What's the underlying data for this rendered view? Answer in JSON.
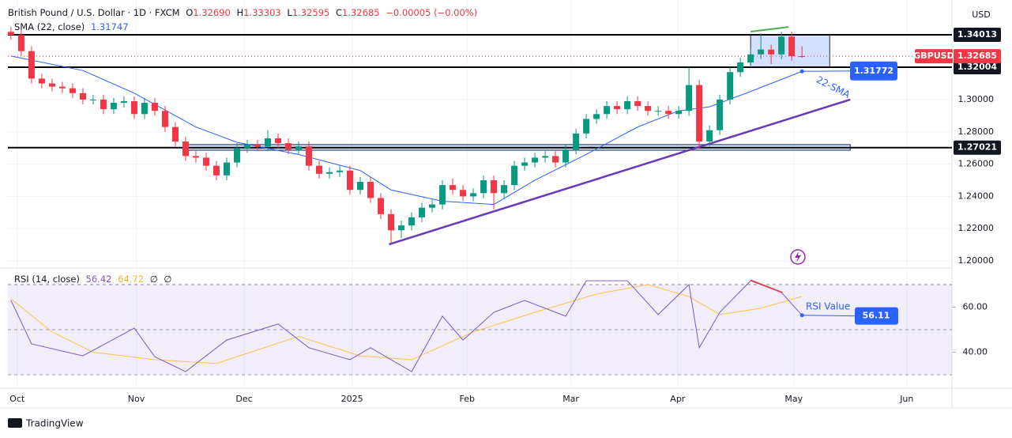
{
  "chart_data": {
    "type": "candlestick",
    "currency": "USD",
    "legend": {
      "title": "British Pound / U.S. Dollar · 1D · FXCM",
      "ohlc": [
        {
          "key": "O",
          "value": "1.32690"
        },
        {
          "key": "H",
          "value": "1.33303"
        },
        {
          "key": "L",
          "value": "1.32595"
        },
        {
          "key": "C",
          "value": "1.32685"
        }
      ],
      "change": "−0.00005 (−0.00%)"
    },
    "up_color": "#089981",
    "down_color": "#f23645",
    "open": [
      1.342,
      1.34,
      1.33,
      1.313,
      1.31,
      1.308,
      1.307,
      1.304,
      1.3,
      1.3,
      1.294,
      1.298,
      1.299,
      1.291,
      1.298,
      1.293,
      1.283,
      1.274,
      1.265,
      1.264,
      1.259,
      1.253,
      1.261,
      1.27,
      1.272,
      1.271,
      1.276,
      1.273,
      1.269,
      1.271,
      1.259,
      1.254,
      1.255,
      1.256,
      1.244,
      1.249,
      1.239,
      1.229,
      1.219,
      1.222,
      1.227,
      1.233,
      1.235,
      1.247,
      1.244,
      1.24,
      1.242,
      1.25,
      1.242,
      1.247,
      1.259,
      1.261,
      1.264,
      1.265,
      1.261,
      1.269,
      1.279,
      1.288,
      1.291,
      1.296,
      1.294,
      1.299,
      1.296,
      1.293,
      1.293,
      1.291,
      1.293,
      1.309,
      1.274,
      1.281,
      1.3,
      1.317,
      1.323,
      1.328,
      1.331,
      1.328,
      1.339,
      1.3269
    ],
    "high": [
      1.345,
      1.343,
      1.333,
      1.316,
      1.313,
      1.311,
      1.31,
      1.307,
      1.303,
      1.303,
      1.301,
      1.302,
      1.302,
      1.301,
      1.301,
      1.296,
      1.286,
      1.277,
      1.268,
      1.267,
      1.262,
      1.264,
      1.273,
      1.275,
      1.275,
      1.281,
      1.279,
      1.276,
      1.274,
      1.274,
      1.262,
      1.258,
      1.259,
      1.259,
      1.252,
      1.252,
      1.242,
      1.232,
      1.225,
      1.23,
      1.236,
      1.238,
      1.25,
      1.251,
      1.247,
      1.245,
      1.253,
      1.253,
      1.25,
      1.262,
      1.264,
      1.267,
      1.268,
      1.268,
      1.272,
      1.282,
      1.291,
      1.294,
      1.299,
      1.299,
      1.302,
      1.302,
      1.299,
      1.296,
      1.296,
      1.296,
      1.32,
      1.312,
      1.284,
      1.303,
      1.32,
      1.326,
      1.331,
      1.341,
      1.334,
      1.342,
      1.342,
      1.33303
    ],
    "low": [
      1.337,
      1.327,
      1.31,
      1.307,
      1.305,
      1.304,
      1.301,
      1.297,
      1.297,
      1.291,
      1.291,
      1.295,
      1.288,
      1.288,
      1.29,
      1.28,
      1.271,
      1.262,
      1.261,
      1.256,
      1.25,
      1.25,
      1.258,
      1.267,
      1.268,
      1.268,
      1.27,
      1.266,
      1.266,
      1.256,
      1.251,
      1.251,
      1.252,
      1.241,
      1.241,
      1.236,
      1.226,
      1.211,
      1.214,
      1.219,
      1.224,
      1.23,
      1.232,
      1.241,
      1.237,
      1.237,
      1.239,
      1.232,
      1.239,
      1.244,
      1.256,
      1.258,
      1.261,
      1.258,
      1.258,
      1.266,
      1.276,
      1.285,
      1.288,
      1.291,
      1.291,
      1.293,
      1.29,
      1.29,
      1.288,
      1.288,
      1.29,
      1.27,
      1.271,
      1.278,
      1.297,
      1.314,
      1.32,
      1.325,
      1.322,
      1.325,
      1.324,
      1.32595
    ],
    "close": [
      1.34,
      1.33,
      1.313,
      1.31,
      1.308,
      1.307,
      1.304,
      1.3,
      1.3,
      1.294,
      1.298,
      1.299,
      1.291,
      1.298,
      1.293,
      1.283,
      1.274,
      1.265,
      1.264,
      1.259,
      1.253,
      1.261,
      1.27,
      1.272,
      1.271,
      1.276,
      1.273,
      1.269,
      1.271,
      1.259,
      1.254,
      1.255,
      1.256,
      1.244,
      1.249,
      1.239,
      1.229,
      1.219,
      1.222,
      1.227,
      1.233,
      1.235,
      1.247,
      1.244,
      1.24,
      1.242,
      1.25,
      1.242,
      1.247,
      1.259,
      1.261,
      1.264,
      1.265,
      1.261,
      1.269,
      1.279,
      1.288,
      1.291,
      1.296,
      1.294,
      1.299,
      1.296,
      1.293,
      1.293,
      1.291,
      1.293,
      1.309,
      1.274,
      1.281,
      1.3,
      1.317,
      1.323,
      1.328,
      1.331,
      1.328,
      1.339,
      1.3269,
      1.32685
    ],
    "xlim": [
      -0.3,
      91.6
    ],
    "xticks": [
      {
        "value": 0.6,
        "label": "Oct"
      },
      {
        "value": 12.2,
        "label": "Nov"
      },
      {
        "value": 22.7,
        "label": "Dec"
      },
      {
        "value": 33.2,
        "label": "2025"
      },
      {
        "value": 44.4,
        "label": "Feb"
      },
      {
        "value": 54.5,
        "label": "Mar"
      },
      {
        "value": 64.9,
        "label": "Apr"
      },
      {
        "value": 76.2,
        "label": "May"
      },
      {
        "value": 87.2,
        "label": "Jun"
      }
    ],
    "ylim": [
      1.1961,
      1.3617
    ],
    "yticks": [
      {
        "value": 1.2,
        "label": "1.20000"
      },
      {
        "value": 1.22,
        "label": "1.22000"
      },
      {
        "value": 1.24,
        "label": "1.24000"
      },
      {
        "value": 1.26,
        "label": "1.26000"
      },
      {
        "value": 1.28,
        "label": "1.28000"
      },
      {
        "value": 1.3,
        "label": "1.30000"
      }
    ],
    "symbol": "GBPUSD",
    "last_price": {
      "value": 1.32685,
      "label": "1.32685",
      "color": "#f23645"
    },
    "sma": {
      "name": "SMA (22, close)",
      "last": "1.31747",
      "color": "#2962ff",
      "x": [
        0,
        7,
        12,
        18,
        22,
        28,
        34,
        37,
        42,
        47,
        51,
        56,
        61,
        65,
        68,
        72,
        77
      ],
      "values": [
        1.327,
        1.318,
        1.304,
        1.283,
        1.2735,
        1.266,
        1.256,
        1.244,
        1.237,
        1.235,
        1.25,
        1.266,
        1.283,
        1.293,
        1.2955,
        1.305,
        1.31747
      ]
    },
    "levels": [
      {
        "value": 1.34013,
        "label": "1.34013"
      },
      {
        "value": 1.32004,
        "label": "1.32004"
      },
      {
        "value": 1.27021,
        "label": "1.27021"
      }
    ],
    "zones": [
      {
        "x": [
          72,
          79.7
        ],
        "values": [
          1.32004,
          1.34013
        ]
      },
      {
        "x": [
          17.2,
          81.7
        ],
        "values": [
          1.2686,
          1.2721
        ]
      }
    ],
    "trendline": {
      "x": [
        36.8,
        81.7
      ],
      "values": [
        1.2103,
        1.3
      ],
      "color": "#673ab7"
    },
    "high_line": {
      "x": [
        72,
        75.7
      ],
      "values": [
        1.3421,
        1.345
      ],
      "color": "#4caf50"
    },
    "sma_note": {
      "text": "22-SMA",
      "value": 1.31772,
      "label": "1.31772"
    },
    "rsi": {
      "name": "RSI (14, close)",
      "last": "56.42",
      "ma_last": "64.72",
      "extra": [
        "∅",
        "∅"
      ],
      "color": "#7e57c2",
      "ma_color": "#f7c548",
      "x": [
        0,
        2,
        7,
        12,
        14,
        17,
        21,
        26,
        29,
        33,
        35,
        39,
        42,
        44,
        47,
        50,
        54,
        56,
        60,
        63,
        66,
        67,
        69,
        72,
        75,
        77
      ],
      "values": [
        63,
        43.7,
        38.4,
        50.7,
        38,
        31.4,
        45.4,
        52.5,
        42,
        36.7,
        42,
        31.4,
        56,
        45.4,
        57.7,
        63,
        56,
        71.7,
        71.7,
        56.7,
        70,
        42,
        57.7,
        71.7,
        66.5,
        56.42
      ],
      "ma_x": [
        0,
        4,
        8,
        14,
        20,
        28,
        34,
        39,
        45,
        51,
        57,
        62,
        66,
        69,
        73,
        77
      ],
      "ma_values": [
        63.7,
        49,
        40,
        36.7,
        35,
        47,
        38.4,
        36.7,
        49,
        57.7,
        65.8,
        70,
        64.7,
        56.7,
        59.5,
        64.72
      ],
      "ylim": [
        24.4,
        77
      ],
      "yticks": [
        {
          "value": 40,
          "label": "40.00"
        },
        {
          "value": 60,
          "label": "60.00"
        }
      ],
      "bands": [
        70,
        50,
        30
      ],
      "note": {
        "text": "RSI Value",
        "value": 56.11,
        "label": "56.11"
      },
      "peak_line": {
        "x": [
          72,
          75.1
        ],
        "values": [
          72,
          66.5
        ],
        "color": "#f23645"
      }
    },
    "brand": "TradingView"
  }
}
